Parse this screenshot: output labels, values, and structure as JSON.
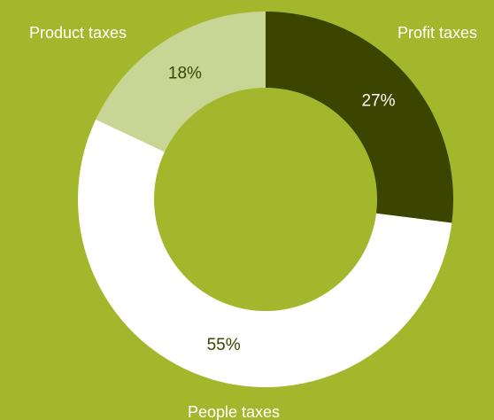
{
  "chart_data": {
    "type": "pie",
    "variant": "donut",
    "title": "",
    "slices": [
      {
        "label": "Profit taxes",
        "value": 27,
        "display": "27%",
        "color": "#3b4500",
        "text_color": "#ffffff"
      },
      {
        "label": "People taxes",
        "value": 55,
        "display": "55%",
        "color": "#ffffff",
        "text_color": "#3b4500"
      },
      {
        "label": "Product taxes",
        "value": 18,
        "display": "18%",
        "color": "#c9d595",
        "text_color": "#3b4500"
      }
    ],
    "background_color": "#a2b72c",
    "hole_color": "#a2b72c",
    "legend": "none"
  }
}
